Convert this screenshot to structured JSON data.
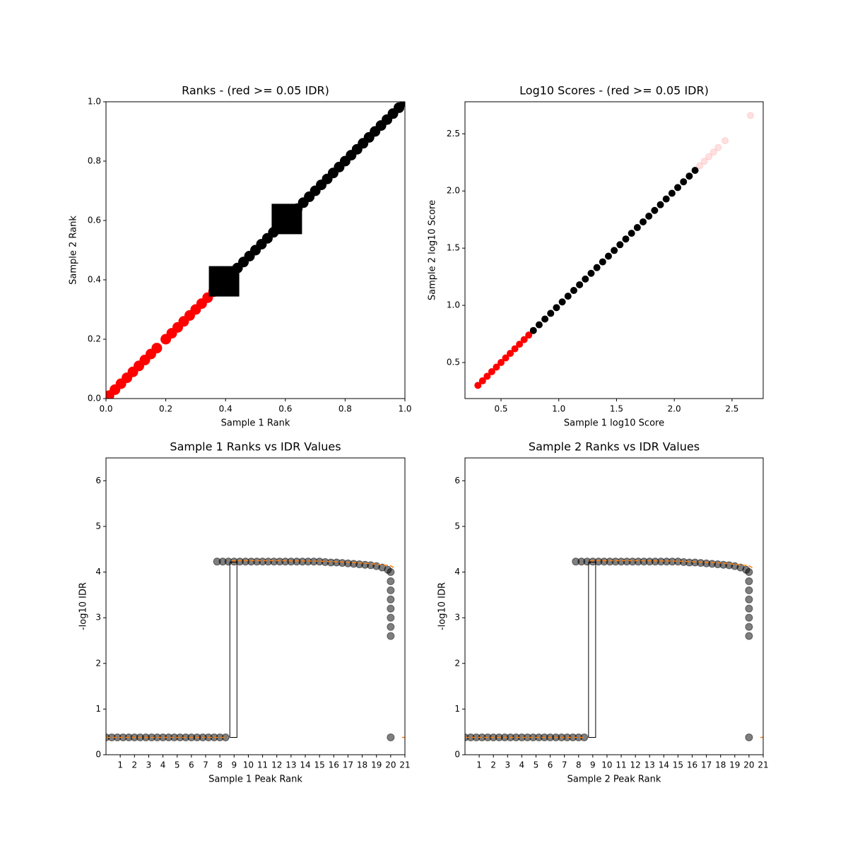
{
  "chart_data": [
    {
      "type": "scatter",
      "title": "Ranks - (red >= 0.05 IDR)",
      "xlabel": "Sample 1 Rank",
      "ylabel": "Sample 2 Rank",
      "xlim": [
        0,
        1
      ],
      "ylim": [
        0,
        1
      ],
      "xticks": [
        {
          "value": 0,
          "label": "0.0"
        },
        0.2,
        0.4,
        0.6,
        0.8,
        {
          "value": 1,
          "label": "1.0"
        }
      ],
      "yticks": [
        {
          "value": 0,
          "label": "0.0"
        },
        0.2,
        0.4,
        0.6,
        0.8,
        {
          "value": 1,
          "label": "1.0"
        }
      ],
      "series": [
        {
          "color": "#ff0000",
          "marker": "o",
          "alpha": 1,
          "x": [
            0.01,
            0.03,
            0.05,
            0.07,
            0.09,
            0.11,
            0.13,
            0.15,
            0.17,
            0.2,
            0.22,
            0.24,
            0.26,
            0.28,
            0.3,
            0.32,
            0.34,
            0.36,
            0.38
          ],
          "values": [
            0.01,
            0.03,
            0.05,
            0.07,
            0.09,
            0.11,
            0.13,
            0.15,
            0.17,
            0.2,
            0.22,
            0.24,
            0.26,
            0.28,
            0.3,
            0.32,
            0.34,
            0.36,
            0.38
          ]
        },
        {
          "color": "#000000",
          "marker": "o",
          "alpha": 1,
          "x": [
            0.4,
            0.42,
            0.44,
            0.46,
            0.48,
            0.5,
            0.52,
            0.54,
            0.56,
            0.58,
            0.6,
            0.62,
            0.64,
            0.66,
            0.68,
            0.7,
            0.72,
            0.74,
            0.76,
            0.78,
            0.8,
            0.82,
            0.84,
            0.86,
            0.88,
            0.9,
            0.92,
            0.94,
            0.96,
            0.98,
            1.0
          ],
          "values": [
            0.4,
            0.42,
            0.44,
            0.46,
            0.48,
            0.5,
            0.52,
            0.54,
            0.56,
            0.58,
            0.6,
            0.62,
            0.64,
            0.66,
            0.68,
            0.7,
            0.72,
            0.74,
            0.76,
            0.78,
            0.8,
            0.82,
            0.84,
            0.86,
            0.88,
            0.9,
            0.92,
            0.94,
            0.96,
            0.98,
            1.0
          ]
        },
        {
          "color": "#000000",
          "marker": "s",
          "alpha": 1,
          "x": [
            0.395,
            0.605
          ],
          "values": [
            0.395,
            0.605
          ]
        }
      ]
    },
    {
      "type": "scatter",
      "title": "Log10 Scores - (red >= 0.05 IDR)",
      "xlabel": "Sample 1 log10 Score",
      "ylabel": "Sample 2 log10 Score",
      "xlim": [
        0.188,
        2.77
      ],
      "ylim": [
        0.185,
        2.78
      ],
      "xticks": [
        0.5,
        {
          "value": 1,
          "label": "1.0"
        },
        1.5,
        {
          "value": 2,
          "label": "2.0"
        },
        2.5
      ],
      "yticks": [
        0.5,
        {
          "value": 1,
          "label": "1.0"
        },
        1.5,
        {
          "value": 2,
          "label": "2.0"
        },
        2.5
      ],
      "series": [
        {
          "color": "#ff0000",
          "marker": "o",
          "alpha": 1,
          "x": [
            0.3,
            0.34,
            0.38,
            0.42,
            0.46,
            0.5,
            0.54,
            0.58,
            0.62,
            0.66,
            0.7,
            0.74
          ],
          "values": [
            0.3,
            0.34,
            0.38,
            0.42,
            0.46,
            0.5,
            0.54,
            0.58,
            0.62,
            0.66,
            0.7,
            0.74
          ]
        },
        {
          "color": "#000000",
          "marker": "o",
          "alpha": 1,
          "x": [
            0.78,
            0.83,
            0.88,
            0.93,
            0.98,
            1.03,
            1.08,
            1.13,
            1.18,
            1.23,
            1.28,
            1.33,
            1.38,
            1.43,
            1.48,
            1.53,
            1.58,
            1.63,
            1.68,
            1.73,
            1.78,
            1.83,
            1.88,
            1.93,
            1.98,
            2.03,
            2.08,
            2.13,
            2.18
          ],
          "values": [
            0.78,
            0.83,
            0.88,
            0.93,
            0.98,
            1.03,
            1.08,
            1.13,
            1.18,
            1.23,
            1.28,
            1.33,
            1.38,
            1.43,
            1.48,
            1.53,
            1.58,
            1.63,
            1.68,
            1.73,
            1.78,
            1.83,
            1.88,
            1.93,
            1.98,
            2.03,
            2.08,
            2.13,
            2.18
          ]
        },
        {
          "color": "#ff0000",
          "marker": "o",
          "alpha": 0.12,
          "x": [
            2.22,
            2.26,
            2.3,
            2.34,
            2.38,
            2.44,
            2.66
          ],
          "values": [
            2.22,
            2.26,
            2.3,
            2.34,
            2.38,
            2.44,
            2.66
          ]
        }
      ]
    },
    {
      "type": "scatter",
      "title": "Sample 1 Ranks vs IDR Values",
      "xlabel": "Sample 1 Peak Rank",
      "ylabel": "-log10 IDR",
      "xlim": [
        0,
        21
      ],
      "ylim": [
        0,
        6.5
      ],
      "xticks": [
        1,
        2,
        3,
        4,
        5,
        6,
        7,
        8,
        9,
        10,
        11,
        12,
        13,
        14,
        15,
        16,
        17,
        18,
        19,
        20,
        21
      ],
      "yticks": [
        0,
        1,
        2,
        3,
        4,
        5,
        6
      ],
      "series": [
        {
          "color": "#000000",
          "mode": "markers",
          "alpha": 0.5,
          "x": [
            0,
            0.4,
            0.8,
            1.2,
            1.6,
            2,
            2.4,
            2.8,
            3.2,
            3.6,
            4,
            4.4,
            4.8,
            5.2,
            5.6,
            6,
            6.4,
            6.8,
            7.2,
            7.6,
            8,
            8.4,
            7.8,
            8.2,
            8.6,
            9,
            9.4,
            9.8,
            10.2,
            10.6,
            11,
            11.4,
            11.8,
            12.2,
            12.6,
            13,
            13.4,
            13.8,
            14.2,
            14.6,
            15,
            15.4,
            15.8,
            16.2,
            16.6,
            17,
            17.4,
            17.8,
            18.2,
            18.6,
            19,
            19.4,
            19.8,
            20,
            20,
            20,
            20,
            20,
            20,
            20,
            20,
            20
          ],
          "values": [
            0.38,
            0.38,
            0.38,
            0.38,
            0.38,
            0.38,
            0.38,
            0.38,
            0.38,
            0.38,
            0.38,
            0.38,
            0.38,
            0.38,
            0.38,
            0.38,
            0.38,
            0.38,
            0.38,
            0.38,
            0.38,
            0.38,
            4.23,
            4.23,
            4.23,
            4.23,
            4.23,
            4.23,
            4.23,
            4.23,
            4.23,
            4.23,
            4.23,
            4.23,
            4.23,
            4.23,
            4.23,
            4.23,
            4.23,
            4.23,
            4.23,
            4.22,
            4.21,
            4.21,
            4.2,
            4.19,
            4.18,
            4.17,
            4.16,
            4.15,
            4.13,
            4.1,
            4.05,
            4.0,
            3.8,
            3.6,
            3.4,
            3.2,
            3.0,
            2.8,
            2.6,
            0.38
          ]
        },
        {
          "color": "#000000",
          "mode": "lines",
          "dash": false,
          "x": [
            8.7,
            8.7,
            9.2,
            9.2,
            8.7
          ],
          "values": [
            0.38,
            4.22,
            4.22,
            0.38,
            0.38
          ]
        },
        {
          "color": "#ff7f0e",
          "mode": "lines",
          "dash": true,
          "x": [
            0,
            8.5,
            8.6,
            8.8,
            12,
            15,
            18,
            20,
            20.3,
            20.5,
            20.8,
            21
          ],
          "values": [
            0.38,
            0.38,
            null,
            4.25,
            4.25,
            4.24,
            4.2,
            4.14,
            4.08,
            null,
            0.38,
            0.38
          ]
        }
      ]
    },
    {
      "type": "scatter",
      "title": "Sample 2 Ranks vs IDR Values",
      "xlabel": "Sample 2 Peak Rank",
      "ylabel": "-log10 IDR",
      "xlim": [
        0,
        21
      ],
      "ylim": [
        0,
        6.5
      ],
      "xticks": [
        1,
        2,
        3,
        4,
        5,
        6,
        7,
        8,
        9,
        10,
        11,
        12,
        13,
        14,
        15,
        16,
        17,
        18,
        19,
        20,
        21
      ],
      "yticks": [
        0,
        1,
        2,
        3,
        4,
        5,
        6
      ],
      "series": [
        {
          "color": "#000000",
          "mode": "markers",
          "alpha": 0.5,
          "x": [
            0,
            0.4,
            0.8,
            1.2,
            1.6,
            2,
            2.4,
            2.8,
            3.2,
            3.6,
            4,
            4.4,
            4.8,
            5.2,
            5.6,
            6,
            6.4,
            6.8,
            7.2,
            7.6,
            8,
            8.4,
            7.8,
            8.2,
            8.6,
            9,
            9.4,
            9.8,
            10.2,
            10.6,
            11,
            11.4,
            11.8,
            12.2,
            12.6,
            13,
            13.4,
            13.8,
            14.2,
            14.6,
            15,
            15.4,
            15.8,
            16.2,
            16.6,
            17,
            17.4,
            17.8,
            18.2,
            18.6,
            19,
            19.4,
            19.8,
            20,
            20,
            20,
            20,
            20,
            20,
            20,
            20,
            20
          ],
          "values": [
            0.38,
            0.38,
            0.38,
            0.38,
            0.38,
            0.38,
            0.38,
            0.38,
            0.38,
            0.38,
            0.38,
            0.38,
            0.38,
            0.38,
            0.38,
            0.38,
            0.38,
            0.38,
            0.38,
            0.38,
            0.38,
            0.38,
            4.23,
            4.23,
            4.23,
            4.23,
            4.23,
            4.23,
            4.23,
            4.23,
            4.23,
            4.23,
            4.23,
            4.23,
            4.23,
            4.23,
            4.23,
            4.23,
            4.23,
            4.23,
            4.23,
            4.22,
            4.21,
            4.21,
            4.2,
            4.19,
            4.18,
            4.17,
            4.16,
            4.15,
            4.13,
            4.1,
            4.05,
            4.0,
            3.8,
            3.6,
            3.4,
            3.2,
            3.0,
            2.8,
            2.6,
            0.38
          ]
        },
        {
          "color": "#000000",
          "mode": "lines",
          "dash": false,
          "x": [
            8.7,
            8.7,
            9.2,
            9.2,
            8.7
          ],
          "values": [
            0.38,
            4.22,
            4.22,
            0.38,
            0.38
          ]
        },
        {
          "color": "#ff7f0e",
          "mode": "lines",
          "dash": true,
          "x": [
            0,
            8.5,
            8.6,
            8.8,
            12,
            15,
            18,
            20,
            20.3,
            20.5,
            20.8,
            21
          ],
          "values": [
            0.38,
            0.38,
            null,
            4.25,
            4.25,
            4.24,
            4.2,
            4.14,
            4.08,
            null,
            0.38,
            0.38
          ]
        }
      ]
    }
  ]
}
